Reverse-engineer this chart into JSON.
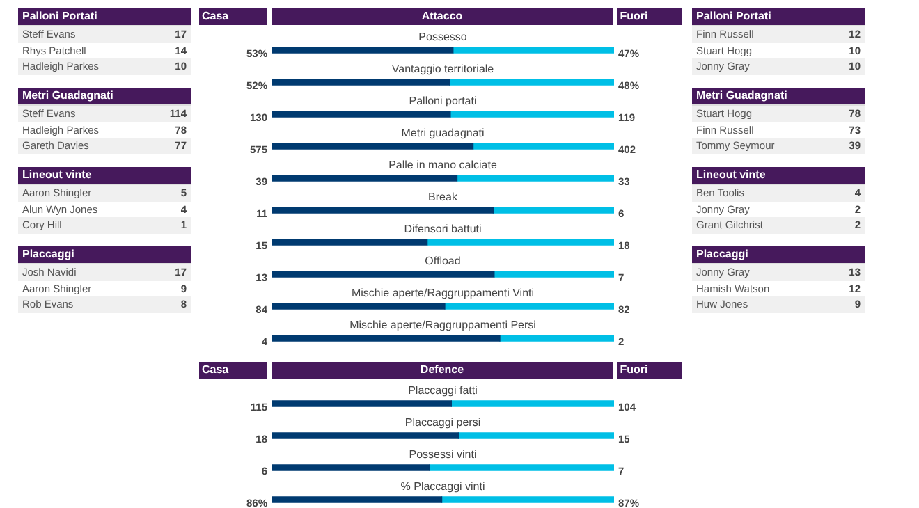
{
  "chart_data": [
    {
      "type": "other",
      "title": "Palloni Portati",
      "annotations": [
        "Steff Evans",
        "17",
        "Rhys Patchell",
        "14",
        "Hadleigh Parkes",
        "10"
      ]
    },
    {
      "type": "other",
      "title": "Metri Guadagnati",
      "annotations": [
        "Steff Evans",
        "114",
        "Hadleigh Parkes",
        "78",
        "Gareth Davies",
        "77"
      ]
    },
    {
      "type": "other",
      "title": "Lineout vinte",
      "annotations": [
        "Aaron Shingler",
        "5",
        "Alun Wyn Jones",
        "4",
        "Cory Hill",
        "1"
      ]
    },
    {
      "type": "other",
      "title": "Placcaggi",
      "annotations": [
        "Josh Navidi",
        "17",
        "Aaron Shingler",
        "9",
        "Rob Evans",
        "8"
      ]
    },
    {
      "type": "bar",
      "title": "Attacco",
      "annotations": [
        "Casa",
        "Fuori"
      ],
      "orientation": "horizontal",
      "stacked": true,
      "tick_labels": "y",
      "xlim": [
        0,
        100
      ],
      "categories": [
        "Possesso"
      ],
      "series": [
        {
          "color": "#003a70",
          "values": [
            53
          ],
          "value_labels": [
            "53%"
          ]
        },
        {
          "color": "#00bfe6",
          "values": [
            47
          ],
          "value_labels": [
            "47%"
          ]
        }
      ]
    },
    {
      "type": "bar",
      "orientation": "horizontal",
      "stacked": true,
      "tick_labels": "y",
      "xlim": [
        0,
        100
      ],
      "categories": [
        "Vantaggio territoriale"
      ],
      "series": [
        {
          "color": "#003a70",
          "values": [
            52
          ],
          "value_labels": [
            "52%"
          ]
        },
        {
          "color": "#00bfe6",
          "values": [
            48
          ],
          "value_labels": [
            "48%"
          ]
        }
      ]
    },
    {
      "type": "bar",
      "orientation": "horizontal",
      "stacked": true,
      "tick_labels": "y",
      "xlim": [
        0,
        249
      ],
      "categories": [
        "Palloni portati"
      ],
      "series": [
        {
          "color": "#003a70",
          "values": [
            130
          ],
          "value_labels": [
            "130"
          ]
        },
        {
          "color": "#00bfe6",
          "values": [
            119
          ],
          "value_labels": [
            "119"
          ]
        }
      ]
    },
    {
      "type": "bar",
      "orientation": "horizontal",
      "stacked": true,
      "tick_labels": "y",
      "xlim": [
        0,
        977
      ],
      "categories": [
        "Metri guadagnati"
      ],
      "series": [
        {
          "color": "#003a70",
          "values": [
            575
          ],
          "value_labels": [
            "575"
          ]
        },
        {
          "color": "#00bfe6",
          "values": [
            402
          ],
          "value_labels": [
            "402"
          ]
        }
      ]
    },
    {
      "type": "bar",
      "orientation": "horizontal",
      "stacked": true,
      "tick_labels": "y",
      "xlim": [
        0,
        72
      ],
      "categories": [
        "Palle in mano calciate"
      ],
      "series": [
        {
          "color": "#003a70",
          "values": [
            39
          ],
          "value_labels": [
            "39"
          ]
        },
        {
          "color": "#00bfe6",
          "values": [
            33
          ],
          "value_labels": [
            "33"
          ]
        }
      ]
    },
    {
      "type": "bar",
      "orientation": "horizontal",
      "stacked": true,
      "tick_labels": "y",
      "xlim": [
        0,
        17
      ],
      "categories": [
        "Break"
      ],
      "series": [
        {
          "color": "#003a70",
          "values": [
            11
          ],
          "value_labels": [
            "11"
          ]
        },
        {
          "color": "#00bfe6",
          "values": [
            6
          ],
          "value_labels": [
            "6"
          ]
        }
      ]
    },
    {
      "type": "bar",
      "orientation": "horizontal",
      "stacked": true,
      "tick_labels": "y",
      "xlim": [
        0,
        33
      ],
      "categories": [
        "Difensori battuti"
      ],
      "series": [
        {
          "color": "#003a70",
          "values": [
            15
          ],
          "value_labels": [
            "15"
          ]
        },
        {
          "color": "#00bfe6",
          "values": [
            18
          ],
          "value_labels": [
            "18"
          ]
        }
      ]
    },
    {
      "type": "bar",
      "orientation": "horizontal",
      "stacked": true,
      "tick_labels": "y",
      "xlim": [
        0,
        20
      ],
      "categories": [
        "Offload"
      ],
      "series": [
        {
          "color": "#003a70",
          "values": [
            13
          ],
          "value_labels": [
            "13"
          ]
        },
        {
          "color": "#00bfe6",
          "values": [
            7
          ],
          "value_labels": [
            "7"
          ]
        }
      ]
    },
    {
      "type": "bar",
      "orientation": "horizontal",
      "stacked": true,
      "tick_labels": "y",
      "xlim": [
        0,
        166
      ],
      "categories": [
        "Mischie aperte/Raggruppamenti Vinti"
      ],
      "series": [
        {
          "color": "#003a70",
          "values": [
            84
          ],
          "value_labels": [
            "84"
          ]
        },
        {
          "color": "#00bfe6",
          "values": [
            82
          ],
          "value_labels": [
            "82"
          ]
        }
      ]
    },
    {
      "type": "bar",
      "orientation": "horizontal",
      "stacked": true,
      "tick_labels": "y",
      "xlim": [
        0,
        6
      ],
      "categories": [
        "Mischie aperte/Raggruppamenti Persi"
      ],
      "series": [
        {
          "color": "#003a70",
          "values": [
            4
          ],
          "value_labels": [
            "4"
          ]
        },
        {
          "color": "#00bfe6",
          "values": [
            2
          ],
          "value_labels": [
            "2"
          ]
        }
      ]
    },
    {
      "type": "bar",
      "title": "Defence",
      "annotations": [
        "Casa",
        "Fuori"
      ],
      "orientation": "horizontal",
      "stacked": true,
      "tick_labels": "y",
      "xlim": [
        0,
        219
      ],
      "categories": [
        "Placcaggi fatti"
      ],
      "series": [
        {
          "color": "#003a70",
          "values": [
            115
          ],
          "value_labels": [
            "115"
          ]
        },
        {
          "color": "#00bfe6",
          "values": [
            104
          ],
          "value_labels": [
            "104"
          ]
        }
      ]
    },
    {
      "type": "bar",
      "orientation": "horizontal",
      "stacked": true,
      "tick_labels": "y",
      "xlim": [
        0,
        33
      ],
      "categories": [
        "Placcaggi persi"
      ],
      "series": [
        {
          "color": "#003a70",
          "values": [
            18
          ],
          "value_labels": [
            "18"
          ]
        },
        {
          "color": "#00bfe6",
          "values": [
            15
          ],
          "value_labels": [
            "15"
          ]
        }
      ]
    },
    {
      "type": "bar",
      "orientation": "horizontal",
      "stacked": true,
      "tick_labels": "y",
      "xlim": [
        0,
        13
      ],
      "categories": [
        "Possessi vinti"
      ],
      "series": [
        {
          "color": "#003a70",
          "values": [
            6
          ],
          "value_labels": [
            "6"
          ]
        },
        {
          "color": "#00bfe6",
          "values": [
            7
          ],
          "value_labels": [
            "7"
          ]
        }
      ]
    },
    {
      "type": "bar",
      "orientation": "horizontal",
      "stacked": true,
      "tick_labels": "y",
      "xlim": [
        0,
        173
      ],
      "categories": [
        "% Placcaggi vinti"
      ],
      "series": [
        {
          "color": "#003a70",
          "values": [
            86
          ],
          "value_labels": [
            "86%"
          ]
        },
        {
          "color": "#00bfe6",
          "values": [
            87
          ],
          "value_labels": [
            "87%"
          ]
        }
      ]
    },
    {
      "type": "other",
      "title": "Palloni Portati",
      "annotations": [
        "Finn Russell",
        "12",
        "Stuart Hogg",
        "10",
        "Jonny Gray",
        "10"
      ]
    },
    {
      "type": "other",
      "title": "Metri Guadagnati",
      "annotations": [
        "Stuart Hogg",
        "78",
        "Finn Russell",
        "73",
        "Tommy Seymour",
        "39"
      ]
    },
    {
      "type": "other",
      "title": "Lineout vinte",
      "annotations": [
        "Ben Toolis",
        "4",
        "Jonny Gray",
        "2",
        "Grant Gilchrist",
        "2"
      ]
    },
    {
      "type": "other",
      "title": "Placcaggi",
      "annotations": [
        "Jonny Gray",
        "13",
        "Hamish Watson",
        "12",
        "Huw Jones",
        "9"
      ]
    }
  ]
}
